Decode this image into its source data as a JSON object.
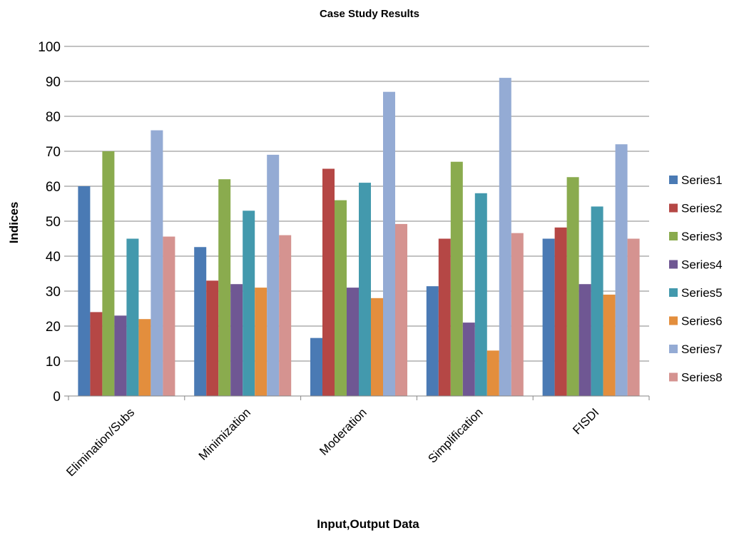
{
  "chart_data": {
    "type": "bar",
    "title": "Case Study Results",
    "xlabel": "Input,Output Data",
    "ylabel": "Indices",
    "ylim": [
      0,
      100
    ],
    "yticks": [
      0,
      10,
      20,
      30,
      40,
      50,
      60,
      70,
      80,
      90,
      100
    ],
    "grid": "horizontal",
    "legend_position": "right",
    "categories": [
      "Elimination/Subs",
      "Minimization",
      "Moderation",
      "Simplification",
      "FISDI"
    ],
    "series": [
      {
        "name": "Series1",
        "color": "#4a7ab4",
        "values": [
          60,
          42.6,
          16.6,
          31.4,
          45
        ]
      },
      {
        "name": "Series2",
        "color": "#b54745",
        "values": [
          24,
          33,
          65,
          45,
          48.2
        ]
      },
      {
        "name": "Series3",
        "color": "#8aab4e",
        "values": [
          70,
          62,
          56,
          67,
          62.6
        ]
      },
      {
        "name": "Series4",
        "color": "#6f5793",
        "values": [
          23,
          32,
          31,
          21,
          32
        ]
      },
      {
        "name": "Series5",
        "color": "#4399ad",
        "values": [
          45,
          53,
          61,
          58,
          54.2
        ]
      },
      {
        "name": "Series6",
        "color": "#e38e3d",
        "values": [
          22,
          31,
          28,
          13,
          29
        ]
      },
      {
        "name": "Series7",
        "color": "#94abd4",
        "values": [
          76,
          69,
          87,
          91,
          72
        ]
      },
      {
        "name": "Series8",
        "color": "#d59390",
        "values": [
          45.6,
          46,
          49.2,
          46.6,
          45
        ]
      }
    ]
  }
}
